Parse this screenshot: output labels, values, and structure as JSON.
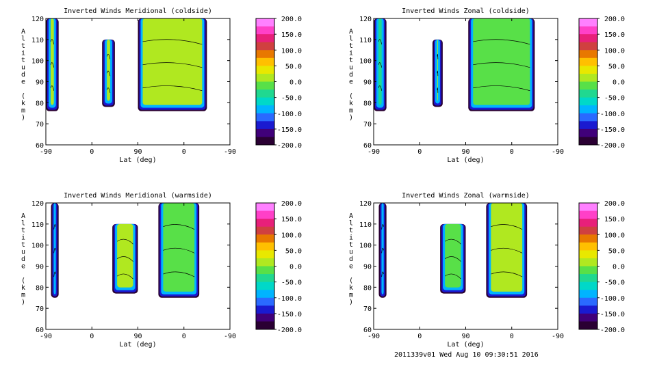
{
  "footer": "2011339v01 Wed Aug 10 09:30:51 2016",
  "chart_data": [
    {
      "type": "heatmap",
      "title": "Inverted Winds Meridional (coldside)",
      "xlabel": "Lat (deg)",
      "ylabel": "Altitude (km)",
      "x_ticks": [
        "-90",
        "0",
        "90",
        "0",
        "-90"
      ],
      "y_ticks": [
        "60",
        "70",
        "80",
        "90",
        "100",
        "110",
        "120"
      ],
      "ylim": [
        60,
        120
      ],
      "colorbar": [
        "200.0",
        "150.0",
        "100.0",
        "50.0",
        "0.0",
        "-50.0",
        "-100.0",
        "-150.0",
        "-200.0"
      ],
      "regions": [
        {
          "x_range": [
            -90,
            -65
          ],
          "alt_range": [
            76,
            120
          ],
          "value": 20
        },
        {
          "x_range": [
            20,
            45
          ],
          "alt_range": [
            78,
            110
          ],
          "value": 5
        },
        {
          "x_range": [
            90,
            225
          ],
          "alt_range": [
            76,
            120
          ],
          "value": 15
        }
      ]
    },
    {
      "type": "heatmap",
      "title": "Inverted Winds Zonal (coldside)",
      "xlabel": "Lat (deg)",
      "ylabel": "Altitude (km)",
      "x_ticks": [
        "-90",
        "0",
        "90",
        "0",
        "-90"
      ],
      "y_ticks": [
        "60",
        "70",
        "80",
        "90",
        "100",
        "110",
        "120"
      ],
      "ylim": [
        60,
        120
      ],
      "colorbar": [
        "200.0",
        "150.0",
        "100.0",
        "50.0",
        "0.0",
        "-50.0",
        "-100.0",
        "-150.0",
        "-200.0"
      ],
      "regions": [
        {
          "x_range": [
            -90,
            -65
          ],
          "alt_range": [
            76,
            120
          ],
          "value": -40
        },
        {
          "x_range": [
            25,
            45
          ],
          "alt_range": [
            78,
            110
          ],
          "value": 10
        },
        {
          "x_range": [
            95,
            225
          ],
          "alt_range": [
            76,
            120
          ],
          "value": -20
        }
      ]
    },
    {
      "type": "heatmap",
      "title": "Inverted Winds Meridional (warmside)",
      "xlabel": "Lat (deg)",
      "ylabel": "Altitude (km)",
      "x_ticks": [
        "-90",
        "0",
        "90",
        "0",
        "-90"
      ],
      "y_ticks": [
        "60",
        "70",
        "80",
        "90",
        "100",
        "110",
        "120"
      ],
      "ylim": [
        60,
        120
      ],
      "colorbar": [
        "200.0",
        "150.0",
        "100.0",
        "50.0",
        "0.0",
        "-50.0",
        "-100.0",
        "-150.0",
        "-200.0"
      ],
      "regions": [
        {
          "x_range": [
            -80,
            -65
          ],
          "alt_range": [
            75,
            120
          ],
          "value": 40
        },
        {
          "x_range": [
            40,
            90
          ],
          "alt_range": [
            77,
            110
          ],
          "value": 5
        },
        {
          "x_range": [
            130,
            210
          ],
          "alt_range": [
            75,
            120
          ],
          "value": -10
        }
      ]
    },
    {
      "type": "heatmap",
      "title": "Inverted Winds Zonal (warmside)",
      "xlabel": "Lat (deg)",
      "ylabel": "Altitude (km)",
      "x_ticks": [
        "-90",
        "0",
        "90",
        "0",
        "-90"
      ],
      "y_ticks": [
        "60",
        "70",
        "80",
        "90",
        "100",
        "110",
        "120"
      ],
      "ylim": [
        60,
        120
      ],
      "colorbar": [
        "200.0",
        "150.0",
        "100.0",
        "50.0",
        "0.0",
        "-50.0",
        "-100.0",
        "-150.0",
        "-200.0"
      ],
      "regions": [
        {
          "x_range": [
            -80,
            -65
          ],
          "alt_range": [
            75,
            120
          ],
          "value": -30
        },
        {
          "x_range": [
            40,
            90
          ],
          "alt_range": [
            77,
            110
          ],
          "value": -10
        },
        {
          "x_range": [
            130,
            210
          ],
          "alt_range": [
            75,
            120
          ],
          "value": 20
        }
      ]
    }
  ]
}
